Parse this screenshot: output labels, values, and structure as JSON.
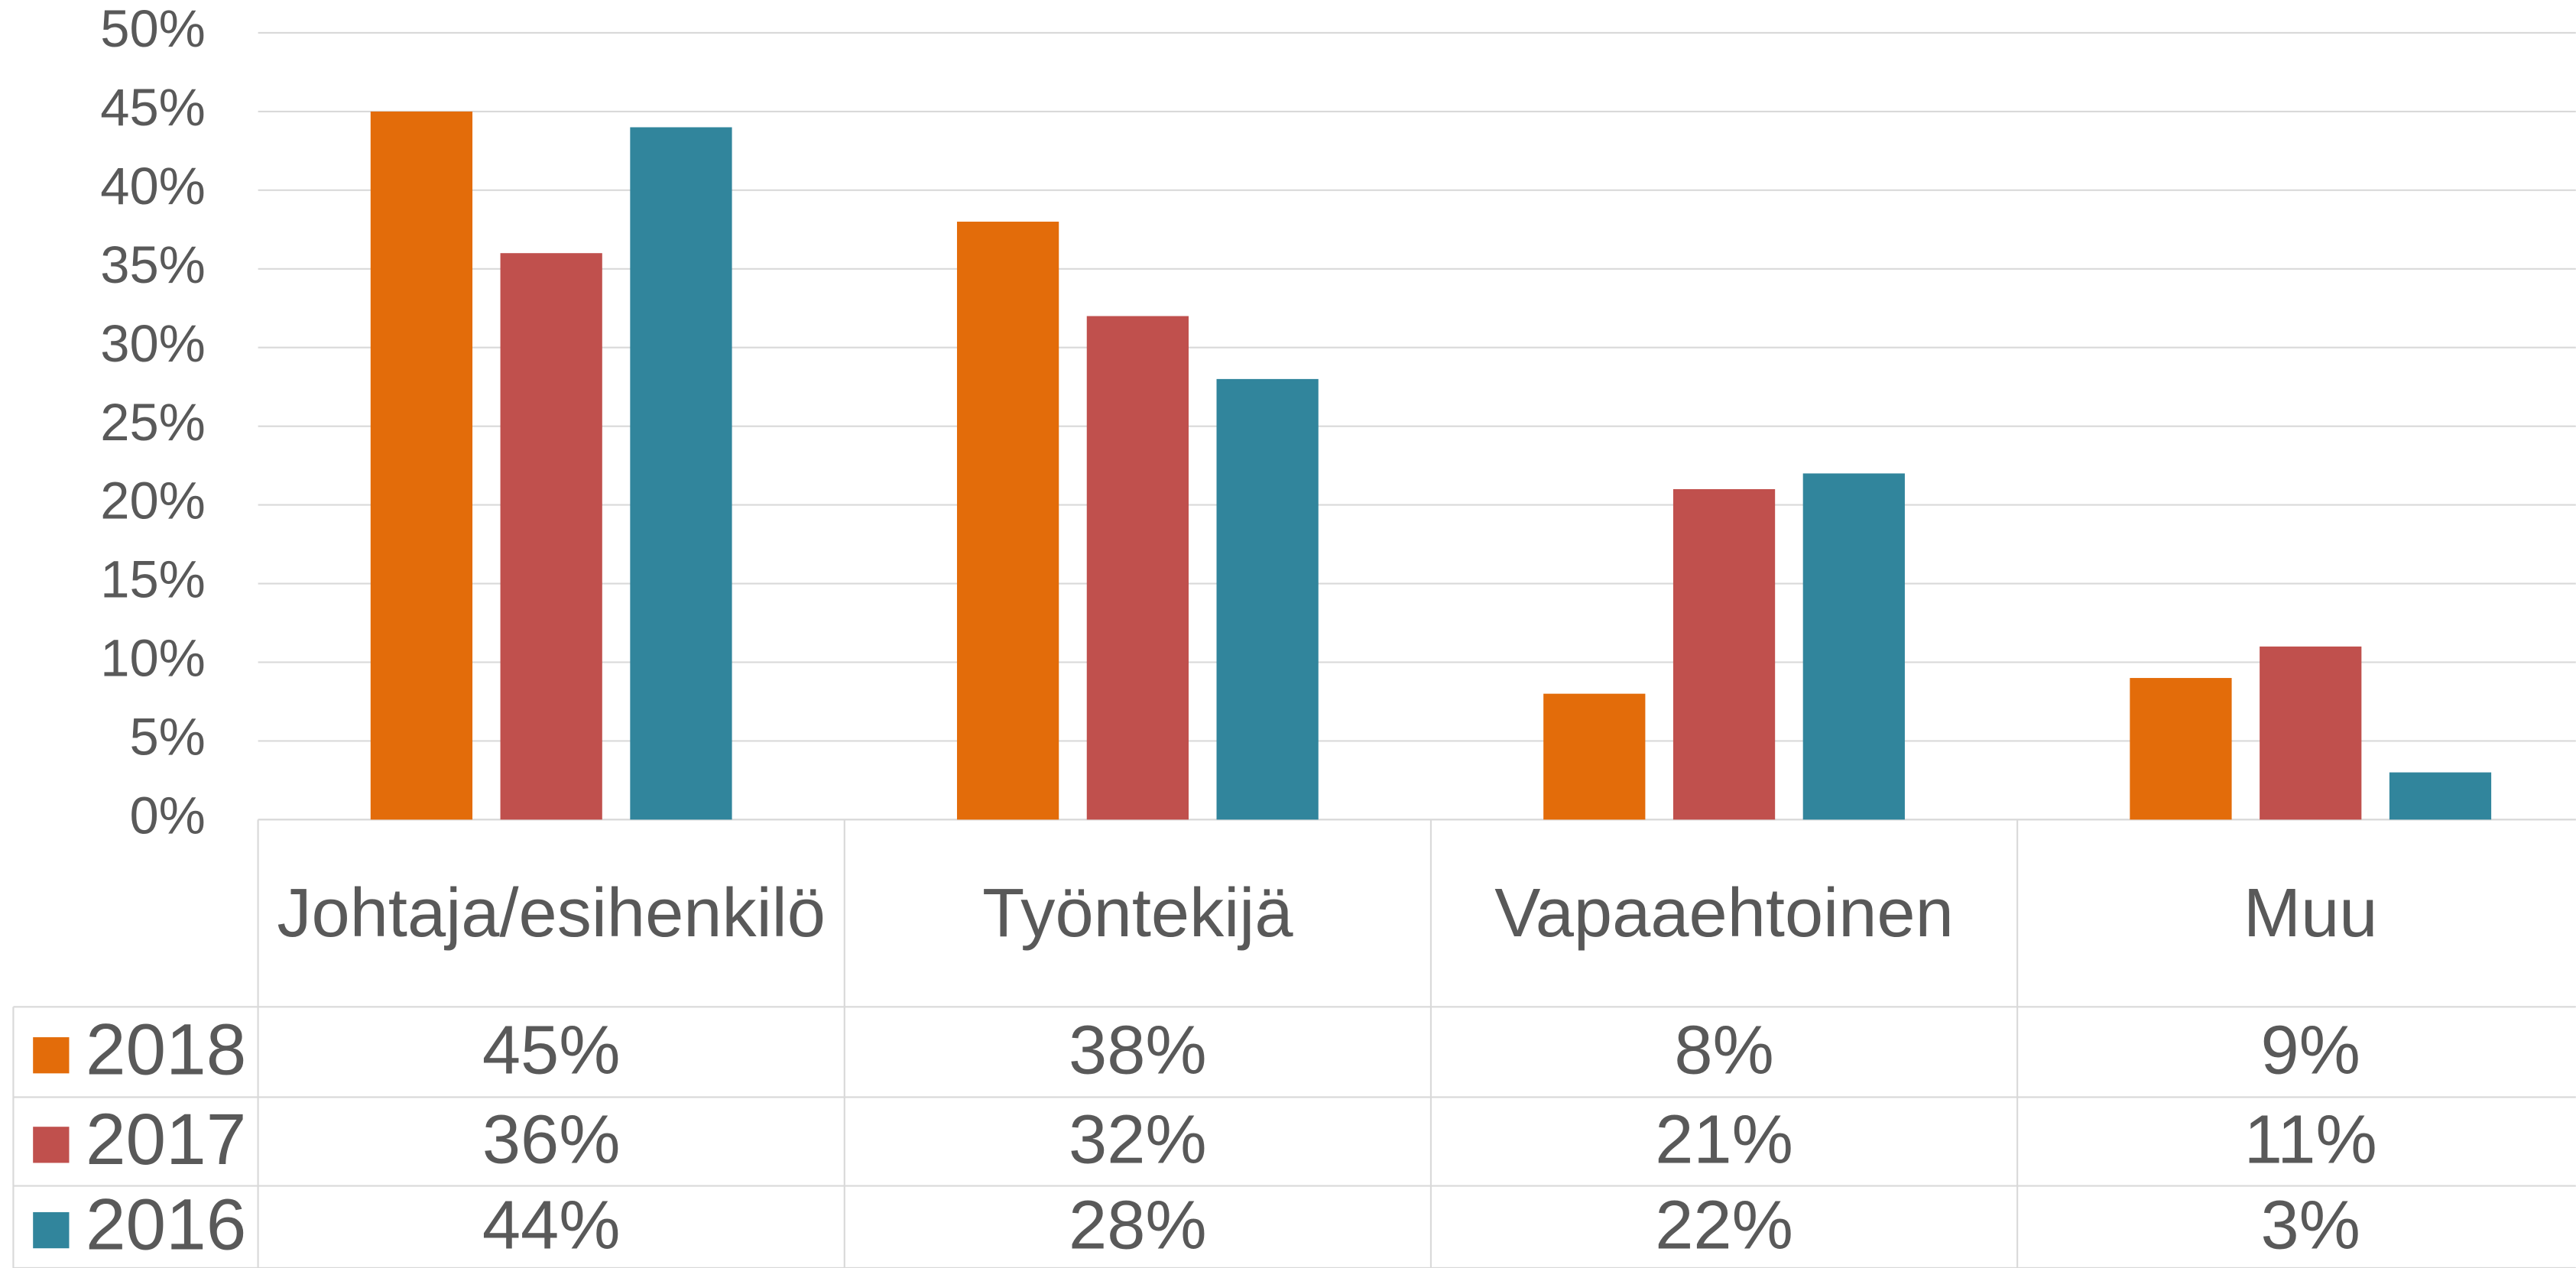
{
  "chart_data": {
    "type": "bar",
    "categories": [
      "Johtaja/esihenkilö",
      "Työntekijä",
      "Vapaaehtoinen",
      "Muu"
    ],
    "series": [
      {
        "name": "2018",
        "color": "#E36C0A",
        "values": [
          45,
          38,
          8,
          9
        ],
        "value_labels": [
          "45%",
          "38%",
          "8%",
          "9%"
        ]
      },
      {
        "name": "2017",
        "color": "#C0504D",
        "values": [
          36,
          32,
          21,
          11
        ],
        "value_labels": [
          "36%",
          "32%",
          "21%",
          "11%"
        ]
      },
      {
        "name": "2016",
        "color": "#31859C",
        "values": [
          44,
          28,
          22,
          3
        ],
        "value_labels": [
          "44%",
          "28%",
          "22%",
          "3%"
        ]
      }
    ],
    "ylim": [
      0,
      50
    ],
    "yticks": [
      {
        "value": 0,
        "label": "0%"
      },
      {
        "value": 5,
        "label": "5%"
      },
      {
        "value": 10,
        "label": "10%"
      },
      {
        "value": 15,
        "label": "15%"
      },
      {
        "value": 20,
        "label": "20%"
      },
      {
        "value": 25,
        "label": "25%"
      },
      {
        "value": 30,
        "label": "30%"
      },
      {
        "value": 35,
        "label": "35%"
      },
      {
        "value": 40,
        "label": "40%"
      },
      {
        "value": 45,
        "label": "45%"
      },
      {
        "value": 50,
        "label": "50%"
      }
    ],
    "grid": true
  }
}
